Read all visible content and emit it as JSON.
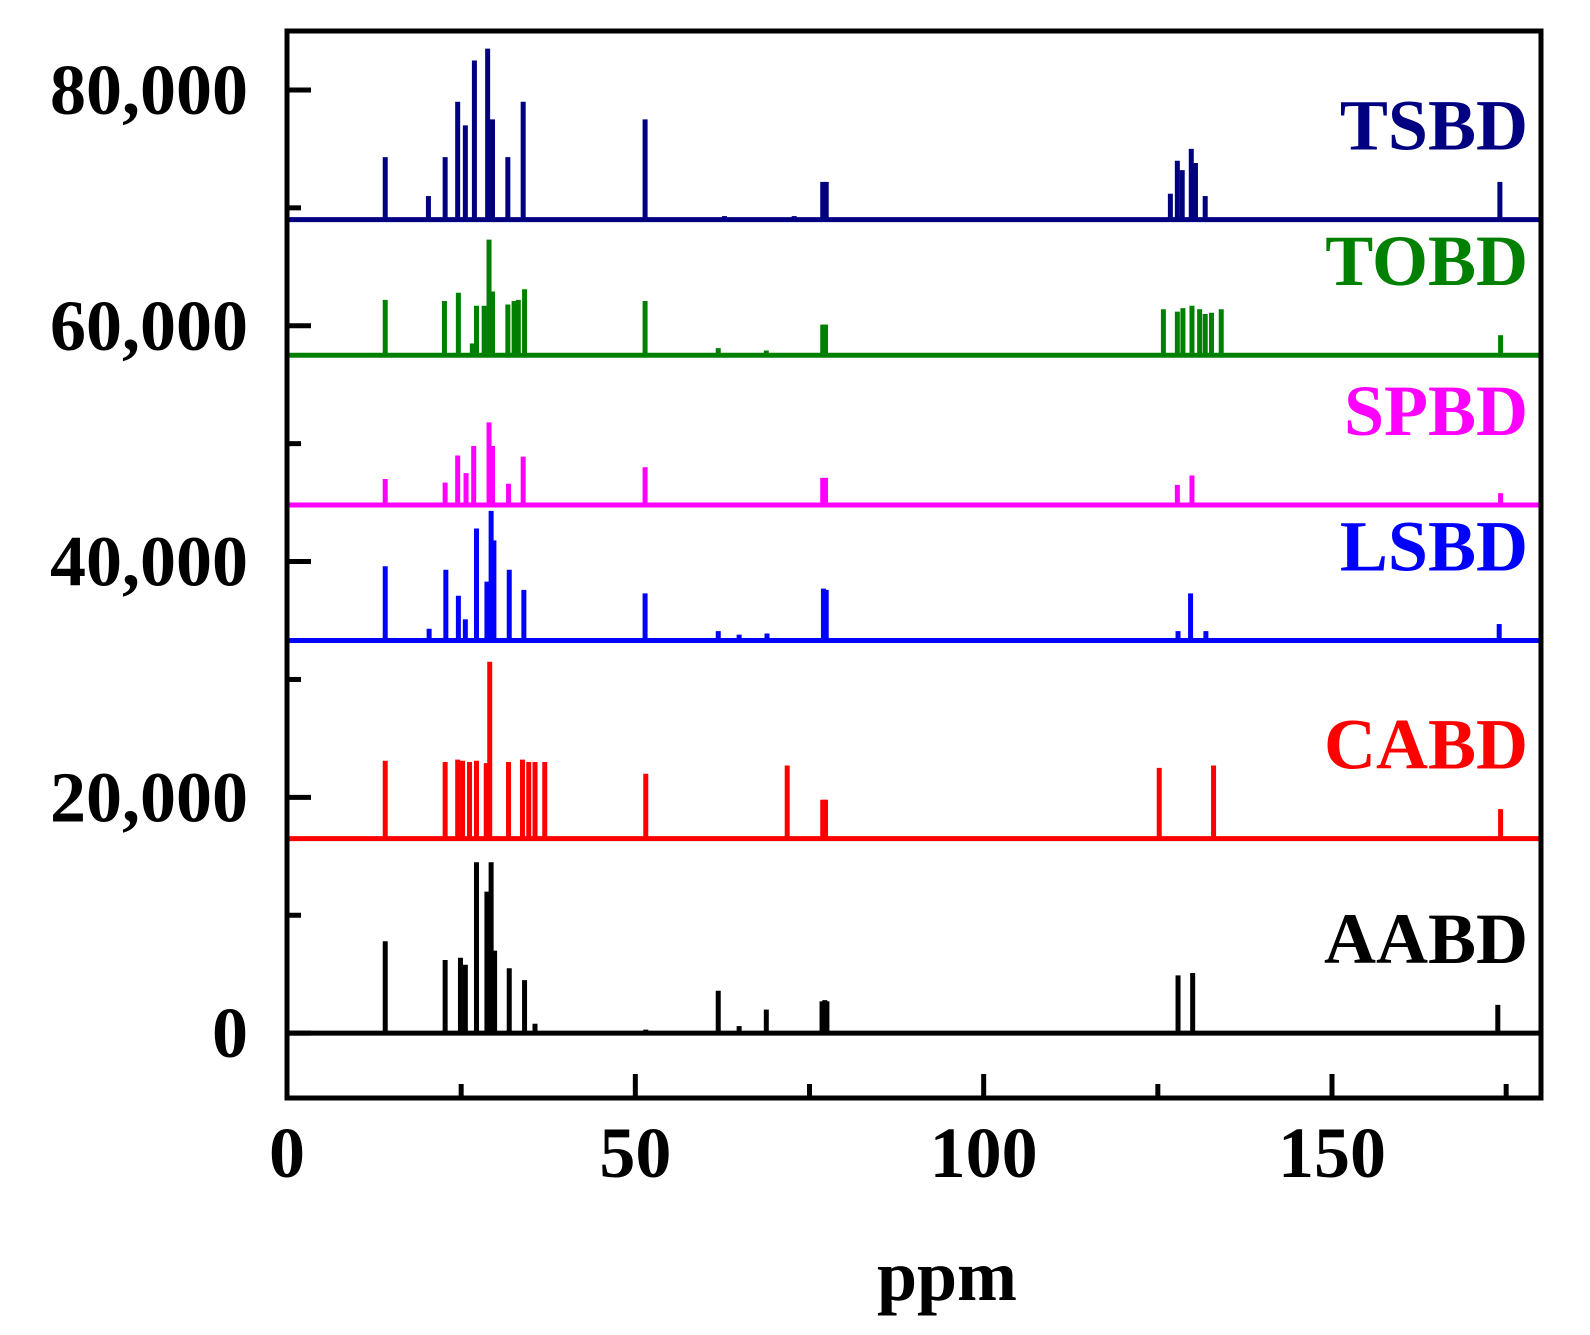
{
  "chart_data": {
    "type": "line",
    "title": "",
    "xlabel": "ppm",
    "ylabel": "",
    "xlim": [
      0,
      180
    ],
    "ylim": [
      -5500,
      85000
    ],
    "x_ticks": [
      0,
      50,
      100,
      150
    ],
    "x_tick_labels": [
      "0",
      "50",
      "100",
      "150"
    ],
    "x_minor_ticks": [
      25,
      75,
      125,
      175
    ],
    "y_ticks": [
      0,
      20000,
      40000,
      60000,
      80000
    ],
    "y_tick_labels": [
      "0",
      "20,000",
      "40,000",
      "60,000",
      "80,000"
    ],
    "y_minor_ticks": [
      10000,
      30000,
      50000,
      70000
    ],
    "grid": false,
    "legend": "inline right, one label per trace",
    "series": [
      {
        "name": "AABD",
        "color": "#000000",
        "baseline": 0,
        "peaks": [
          {
            "ppm": 14.1,
            "height": 7800
          },
          {
            "ppm": 22.7,
            "height": 6200
          },
          {
            "ppm": 24.9,
            "height": 6400
          },
          {
            "ppm": 25.6,
            "height": 5800
          },
          {
            "ppm": 27.2,
            "height": 14500
          },
          {
            "ppm": 28.7,
            "height": 12000
          },
          {
            "ppm": 29.3,
            "height": 14500
          },
          {
            "ppm": 29.8,
            "height": 7000
          },
          {
            "ppm": 31.9,
            "height": 5500
          },
          {
            "ppm": 34.1,
            "height": 4500
          },
          {
            "ppm": 35.6,
            "height": 800
          },
          {
            "ppm": 51.5,
            "height": 300
          },
          {
            "ppm": 61.9,
            "height": 3600
          },
          {
            "ppm": 64.9,
            "height": 600
          },
          {
            "ppm": 68.8,
            "height": 2000
          },
          {
            "ppm": 76.8,
            "height": 2700
          },
          {
            "ppm": 77.2,
            "height": 2800
          },
          {
            "ppm": 77.5,
            "height": 2700
          },
          {
            "ppm": 127.9,
            "height": 4900
          },
          {
            "ppm": 130.0,
            "height": 5100
          },
          {
            "ppm": 173.8,
            "height": 2400
          }
        ]
      },
      {
        "name": "CABD",
        "color": "#ff0000",
        "baseline": 16500,
        "peaks": [
          {
            "ppm": 14.1,
            "height": 6600
          },
          {
            "ppm": 22.7,
            "height": 6500
          },
          {
            "ppm": 24.5,
            "height": 6700
          },
          {
            "ppm": 25.2,
            "height": 6600
          },
          {
            "ppm": 26.2,
            "height": 6500
          },
          {
            "ppm": 27.2,
            "height": 6600
          },
          {
            "ppm": 28.6,
            "height": 6400
          },
          {
            "ppm": 29.1,
            "height": 15000
          },
          {
            "ppm": 31.8,
            "height": 6500
          },
          {
            "ppm": 33.8,
            "height": 6700
          },
          {
            "ppm": 34.7,
            "height": 6500
          },
          {
            "ppm": 35.6,
            "height": 6500
          },
          {
            "ppm": 37.0,
            "height": 6500
          },
          {
            "ppm": 51.5,
            "height": 5500
          },
          {
            "ppm": 71.8,
            "height": 6200
          },
          {
            "ppm": 76.9,
            "height": 3300
          },
          {
            "ppm": 77.3,
            "height": 3300
          },
          {
            "ppm": 125.2,
            "height": 6000
          },
          {
            "ppm": 133.0,
            "height": 6200
          },
          {
            "ppm": 174.2,
            "height": 2500
          }
        ]
      },
      {
        "name": "LSBD",
        "color": "#0000ff",
        "baseline": 33300,
        "peaks": [
          {
            "ppm": 14.1,
            "height": 6300
          },
          {
            "ppm": 20.4,
            "height": 1000
          },
          {
            "ppm": 22.8,
            "height": 6000
          },
          {
            "ppm": 24.6,
            "height": 3800
          },
          {
            "ppm": 25.6,
            "height": 1800
          },
          {
            "ppm": 27.2,
            "height": 9500
          },
          {
            "ppm": 28.7,
            "height": 5000
          },
          {
            "ppm": 29.3,
            "height": 11000
          },
          {
            "ppm": 29.7,
            "height": 8500
          },
          {
            "ppm": 31.9,
            "height": 6000
          },
          {
            "ppm": 34.0,
            "height": 4300
          },
          {
            "ppm": 51.4,
            "height": 4000
          },
          {
            "ppm": 61.9,
            "height": 800
          },
          {
            "ppm": 64.9,
            "height": 500
          },
          {
            "ppm": 68.9,
            "height": 600
          },
          {
            "ppm": 77.0,
            "height": 4400
          },
          {
            "ppm": 77.4,
            "height": 4300
          },
          {
            "ppm": 127.9,
            "height": 800
          },
          {
            "ppm": 129.7,
            "height": 4000
          },
          {
            "ppm": 131.9,
            "height": 800
          },
          {
            "ppm": 174.0,
            "height": 1400
          }
        ]
      },
      {
        "name": "SPBD",
        "color": "#ff00ff",
        "baseline": 44800,
        "peaks": [
          {
            "ppm": 14.1,
            "height": 2200
          },
          {
            "ppm": 22.7,
            "height": 1900
          },
          {
            "ppm": 24.5,
            "height": 4200
          },
          {
            "ppm": 25.7,
            "height": 2700
          },
          {
            "ppm": 26.8,
            "height": 5000
          },
          {
            "ppm": 29.0,
            "height": 7000
          },
          {
            "ppm": 29.5,
            "height": 5000
          },
          {
            "ppm": 31.8,
            "height": 1800
          },
          {
            "ppm": 33.9,
            "height": 4100
          },
          {
            "ppm": 51.4,
            "height": 3200
          },
          {
            "ppm": 76.9,
            "height": 2300
          },
          {
            "ppm": 77.3,
            "height": 2300
          },
          {
            "ppm": 127.8,
            "height": 1700
          },
          {
            "ppm": 129.9,
            "height": 2500
          },
          {
            "ppm": 174.2,
            "height": 1000
          }
        ]
      },
      {
        "name": "TOBD",
        "color": "#008000",
        "baseline": 57500,
        "peaks": [
          {
            "ppm": 14.1,
            "height": 4700
          },
          {
            "ppm": 22.6,
            "height": 4600
          },
          {
            "ppm": 24.6,
            "height": 5300
          },
          {
            "ppm": 26.6,
            "height": 1000
          },
          {
            "ppm": 27.2,
            "height": 4200
          },
          {
            "ppm": 28.3,
            "height": 4200
          },
          {
            "ppm": 29.0,
            "height": 9800
          },
          {
            "ppm": 29.5,
            "height": 5400
          },
          {
            "ppm": 31.7,
            "height": 4300
          },
          {
            "ppm": 32.6,
            "height": 4600
          },
          {
            "ppm": 33.2,
            "height": 4700
          },
          {
            "ppm": 34.1,
            "height": 5600
          },
          {
            "ppm": 51.4,
            "height": 4600
          },
          {
            "ppm": 61.9,
            "height": 600
          },
          {
            "ppm": 68.8,
            "height": 400
          },
          {
            "ppm": 76.9,
            "height": 2600
          },
          {
            "ppm": 77.3,
            "height": 2600
          },
          {
            "ppm": 125.8,
            "height": 3900
          },
          {
            "ppm": 127.8,
            "height": 3700
          },
          {
            "ppm": 128.6,
            "height": 4000
          },
          {
            "ppm": 129.9,
            "height": 4200
          },
          {
            "ppm": 131.0,
            "height": 3900
          },
          {
            "ppm": 131.8,
            "height": 3500
          },
          {
            "ppm": 132.7,
            "height": 3600
          },
          {
            "ppm": 134.1,
            "height": 3900
          },
          {
            "ppm": 174.2,
            "height": 1700
          }
        ]
      },
      {
        "name": "TSBD",
        "color": "#000080",
        "baseline": 69000,
        "peaks": [
          {
            "ppm": 14.1,
            "height": 5300
          },
          {
            "ppm": 20.3,
            "height": 2000
          },
          {
            "ppm": 22.7,
            "height": 5300
          },
          {
            "ppm": 24.5,
            "height": 10000
          },
          {
            "ppm": 25.6,
            "height": 8000
          },
          {
            "ppm": 26.9,
            "height": 13500
          },
          {
            "ppm": 28.8,
            "height": 14500
          },
          {
            "ppm": 29.5,
            "height": 8500
          },
          {
            "ppm": 31.7,
            "height": 5300
          },
          {
            "ppm": 33.9,
            "height": 10000
          },
          {
            "ppm": 51.4,
            "height": 8500
          },
          {
            "ppm": 62.8,
            "height": 300
          },
          {
            "ppm": 72.8,
            "height": 300
          },
          {
            "ppm": 76.9,
            "height": 3200
          },
          {
            "ppm": 77.4,
            "height": 3200
          },
          {
            "ppm": 126.8,
            "height": 2200
          },
          {
            "ppm": 127.8,
            "height": 5000
          },
          {
            "ppm": 128.5,
            "height": 4200
          },
          {
            "ppm": 129.8,
            "height": 6000
          },
          {
            "ppm": 130.4,
            "height": 4800
          },
          {
            "ppm": 131.8,
            "height": 2000
          },
          {
            "ppm": 174.1,
            "height": 3200
          }
        ]
      }
    ]
  }
}
